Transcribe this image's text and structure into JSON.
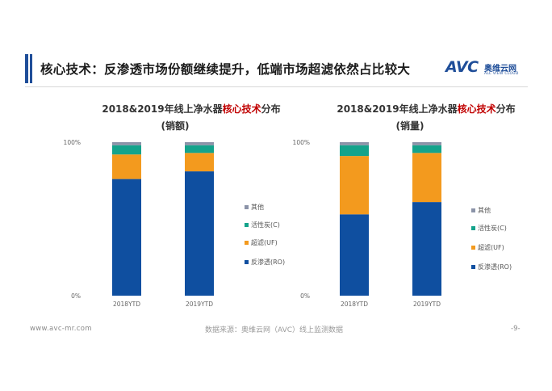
{
  "header": {
    "title": "核心技术：反渗透市场份额继续提升，低端市场超滤依然占比较大",
    "logo_text": "AVC",
    "logo_cn": "奥维云网",
    "logo_en": "ALL VIEW CLOUD"
  },
  "footer": {
    "url": "www.avc-mr.com",
    "source": "数据来源：奥维云网（AVC）线上监测数据",
    "page": "-9-"
  },
  "colors": {
    "ro": "#0f4fa0",
    "uf": "#f39a1e",
    "c": "#14a38b",
    "other": "#8b93a8"
  },
  "chart_data": [
    {
      "type": "bar",
      "stacked": true,
      "title_parts": [
        "2018&2019年线上净水器",
        "核心技术",
        "分布"
      ],
      "subtitle": "(销额)",
      "categories": [
        "2018YTD",
        "2019YTD"
      ],
      "y_ticks": [
        "100%",
        "0%"
      ],
      "ylim": [
        0,
        100
      ],
      "legend_placement": "right",
      "series": [
        {
          "name": "反渗透(RO)",
          "values": [
            76,
            81
          ]
        },
        {
          "name": "超滤(UF)",
          "values": [
            16,
            12
          ]
        },
        {
          "name": "活性炭(C)",
          "values": [
            6,
            5
          ]
        },
        {
          "name": "其他",
          "values": [
            2,
            2
          ]
        }
      ]
    },
    {
      "type": "bar",
      "stacked": true,
      "title_parts": [
        "2018&2019年线上净水器",
        "核心技术",
        "分布"
      ],
      "subtitle": "(销量)",
      "categories": [
        "2018YTD",
        "2019YTD"
      ],
      "y_ticks": [
        "100%",
        "0%"
      ],
      "ylim": [
        0,
        100
      ],
      "legend_placement": "right",
      "series": [
        {
          "name": "反渗透(RO)",
          "values": [
            53,
            61
          ]
        },
        {
          "name": "超滤(UF)",
          "values": [
            38,
            32
          ]
        },
        {
          "name": "活性炭(C)",
          "values": [
            7,
            5
          ]
        },
        {
          "name": "其他",
          "values": [
            2,
            2
          ]
        }
      ]
    }
  ]
}
